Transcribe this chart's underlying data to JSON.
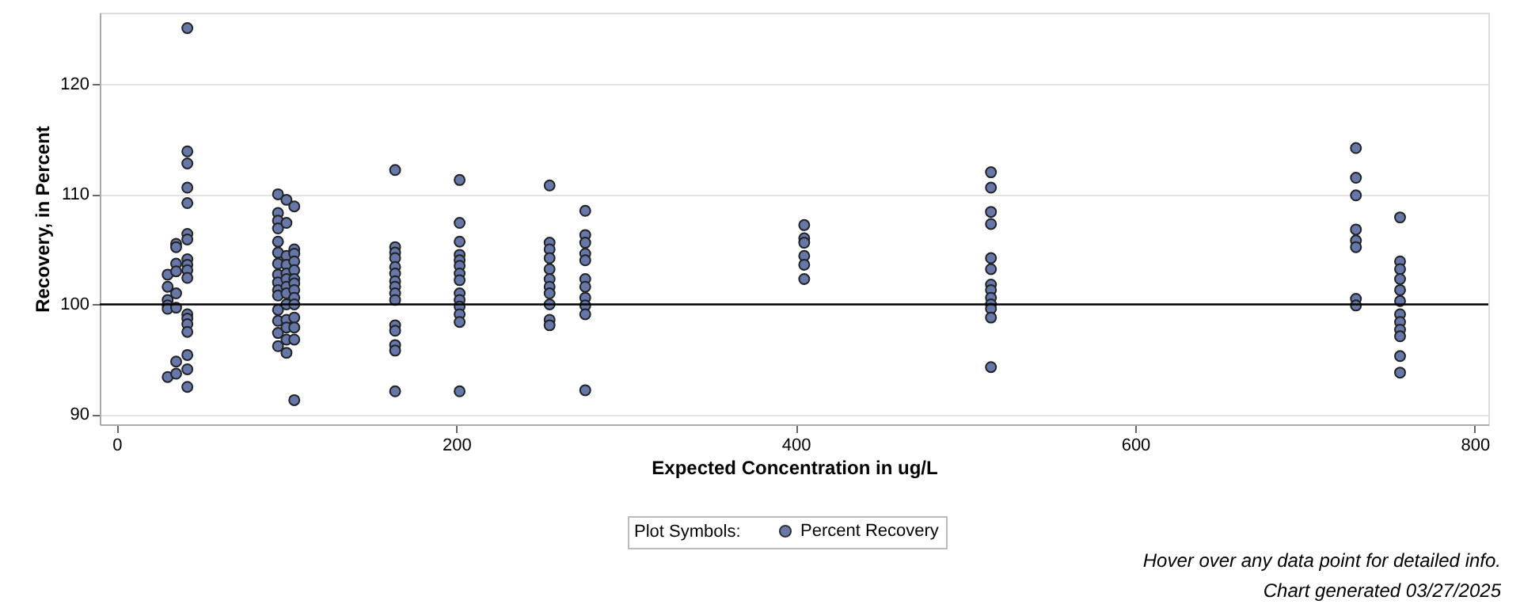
{
  "chart_data": {
    "type": "scatter",
    "xlabel": "Expected Concentration in ug/L",
    "ylabel": "Recovery, in Percent",
    "legend_title": "Plot Symbols:",
    "x": [
      41.6,
      41.6,
      41.6,
      41.6,
      41.6,
      41.6,
      41.6,
      41.6,
      41.6,
      41.6,
      41.6,
      41.6,
      41.6,
      41.6,
      41.6,
      41.6,
      41.6,
      41.6,
      30,
      30,
      30,
      30,
      30,
      30,
      35,
      35,
      35,
      35,
      35,
      35,
      35,
      35,
      95,
      95,
      95,
      95,
      95,
      95,
      95,
      95,
      95,
      95,
      95,
      95,
      95,
      95,
      95,
      100,
      100,
      100,
      100,
      100,
      100,
      100,
      100,
      100,
      100,
      100,
      100,
      100,
      104.6,
      104.6,
      104.6,
      104.6,
      104.6,
      104.6,
      104.6,
      104.6,
      104.6,
      104.6,
      104.6,
      104.6,
      104.6,
      104.6,
      164,
      164,
      164,
      164,
      164,
      164,
      164,
      164,
      164,
      164,
      164,
      164,
      164,
      164,
      164,
      202,
      202,
      202,
      202,
      202,
      202,
      202,
      202,
      202,
      202,
      202,
      202,
      202,
      202,
      255,
      255,
      255,
      255,
      255,
      255,
      255,
      255,
      255,
      255,
      255,
      276,
      276,
      276,
      276,
      276,
      276,
      276,
      276,
      276,
      276,
      276,
      405,
      405,
      405,
      405,
      405,
      405,
      515,
      515,
      515,
      515,
      515,
      515,
      515,
      515,
      515,
      515,
      515,
      515,
      515,
      730,
      730,
      730,
      730,
      730,
      730,
      730,
      730,
      756,
      756,
      756,
      756,
      756,
      756,
      756,
      756,
      756,
      756,
      756,
      756
    ],
    "series": [
      {
        "name": "Percent Recovery",
        "color": "#6677aa",
        "values": [
          125.1,
          113.9,
          112.8,
          110.6,
          109.2,
          106.4,
          105.9,
          104.1,
          103.6,
          103.1,
          102.4,
          99.1,
          98.7,
          98.2,
          97.5,
          95.4,
          94.1,
          92.5,
          102.7,
          101.6,
          100.4,
          99.9,
          99.6,
          93.4,
          105.5,
          105.2,
          103.7,
          103.0,
          101.0,
          99.7,
          94.8,
          93.7,
          110.0,
          108.3,
          107.6,
          106.9,
          105.7,
          104.7,
          103.7,
          102.7,
          102.0,
          101.3,
          100.8,
          99.5,
          98.5,
          97.4,
          96.2,
          109.5,
          107.4,
          104.4,
          103.6,
          102.8,
          102.3,
          101.6,
          101.0,
          100.0,
          98.6,
          97.9,
          96.8,
          95.6,
          108.9,
          105.0,
          104.6,
          103.9,
          103.1,
          102.3,
          101.9,
          101.3,
          100.6,
          100.0,
          98.8,
          97.9,
          96.8,
          91.3,
          112.2,
          105.2,
          104.7,
          104.2,
          103.4,
          102.8,
          102.1,
          101.6,
          101.0,
          100.4,
          98.1,
          97.6,
          96.3,
          95.8,
          92.1,
          111.3,
          107.4,
          105.7,
          104.5,
          104.0,
          103.5,
          102.8,
          102.2,
          101.0,
          100.4,
          99.8,
          99.1,
          98.4,
          92.1,
          110.8,
          105.6,
          105.0,
          104.2,
          103.2,
          102.3,
          101.6,
          101.0,
          100.0,
          98.6,
          98.1,
          108.5,
          106.3,
          105.6,
          104.6,
          104.0,
          102.3,
          101.6,
          100.6,
          99.9,
          99.1,
          92.2,
          107.2,
          106.0,
          105.6,
          104.4,
          103.6,
          102.3,
          112.0,
          110.6,
          108.4,
          107.3,
          104.2,
          103.2,
          101.8,
          101.3,
          100.6,
          100.0,
          99.6,
          98.8,
          94.3,
          114.2,
          111.5,
          109.9,
          106.8,
          105.8,
          105.2,
          100.5,
          99.9,
          107.9,
          103.9,
          103.2,
          102.3,
          101.3,
          100.3,
          99.1,
          98.4,
          97.7,
          97.1,
          95.3,
          93.8
        ]
      }
    ],
    "xlim": [
      -10,
      808
    ],
    "xticks": [
      0,
      200,
      400,
      600,
      800
    ],
    "ylim": [
      89.1,
      126.5
    ],
    "yticks": [
      90,
      100,
      110,
      120
    ],
    "ref_lines": [
      {
        "axis": "y",
        "value": 100,
        "color": "#000000"
      }
    ],
    "grid": "y",
    "legend": "bottom",
    "marker": "circle",
    "annotations": [
      "Hover over any data point for detailed info.",
      "Chart generated 03/27/2025"
    ]
  }
}
